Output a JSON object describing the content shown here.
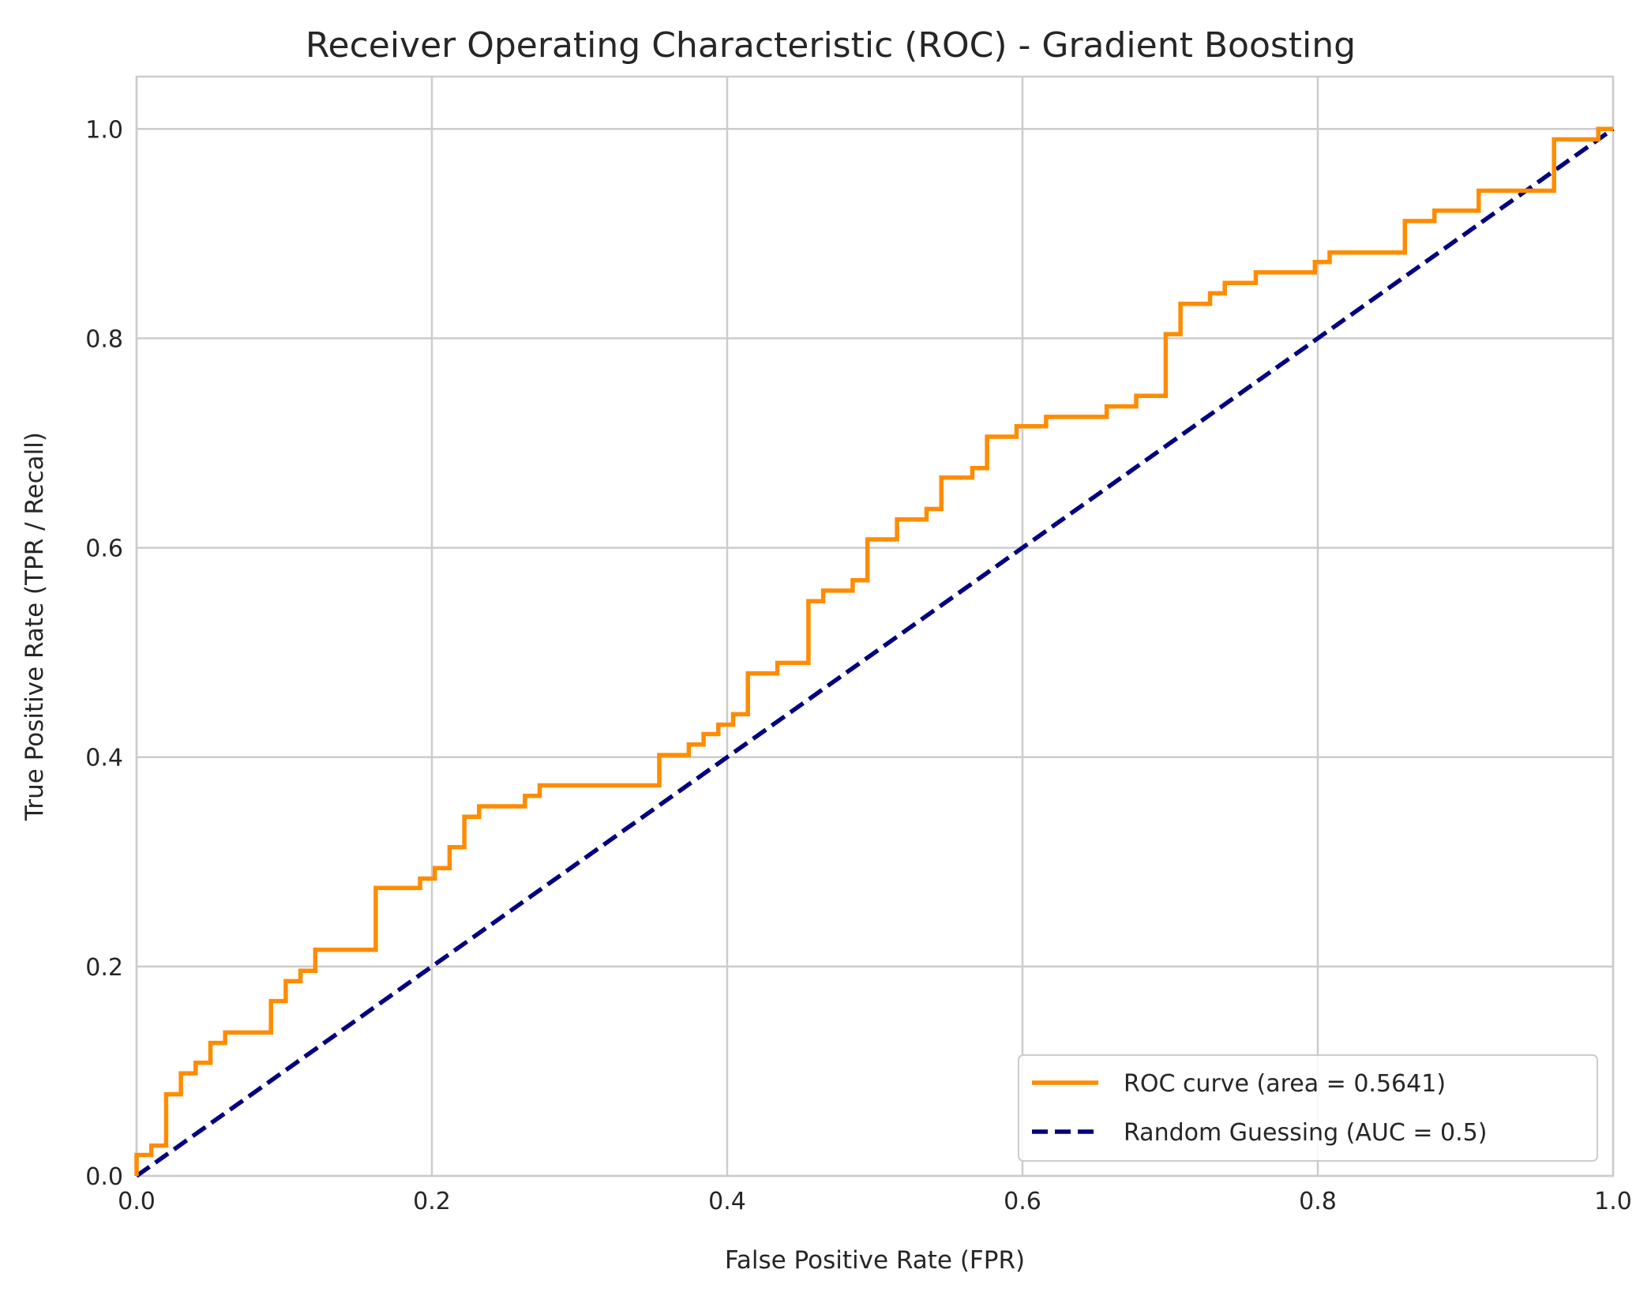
{
  "chart_data": {
    "type": "line",
    "title": "Receiver Operating Characteristic (ROC) - Gradient Boosting",
    "xlabel": "False Positive Rate (FPR)",
    "ylabel": "True Positive Rate (TPR / Recall)",
    "xlim": [
      0.0,
      1.0
    ],
    "ylim": [
      0.0,
      1.05
    ],
    "xticks": [
      "0.0",
      "0.2",
      "0.4",
      "0.6",
      "0.8",
      "1.0"
    ],
    "yticks": [
      "0.0",
      "0.2",
      "0.4",
      "0.6",
      "0.8",
      "1.0"
    ],
    "grid": true,
    "legend_position": "lower-right",
    "series": [
      {
        "name": "ROC curve (area = 0.5641)",
        "color": "#ff8c00",
        "style": "solid",
        "x": [
          0.0,
          0.0,
          0.01,
          0.01,
          0.02,
          0.02,
          0.03,
          0.03,
          0.04,
          0.04,
          0.05,
          0.05,
          0.06,
          0.06,
          0.091,
          0.091,
          0.101,
          0.101,
          0.111,
          0.111,
          0.121,
          0.121,
          0.162,
          0.162,
          0.192,
          0.192,
          0.202,
          0.202,
          0.212,
          0.212,
          0.222,
          0.222,
          0.232,
          0.232,
          0.263,
          0.263,
          0.273,
          0.273,
          0.354,
          0.354,
          0.374,
          0.374,
          0.384,
          0.384,
          0.394,
          0.394,
          0.404,
          0.404,
          0.414,
          0.414,
          0.434,
          0.434,
          0.455,
          0.455,
          0.465,
          0.465,
          0.485,
          0.485,
          0.495,
          0.495,
          0.515,
          0.515,
          0.535,
          0.535,
          0.545,
          0.545,
          0.566,
          0.566,
          0.576,
          0.576,
          0.596,
          0.596,
          0.616,
          0.616,
          0.657,
          0.657,
          0.677,
          0.677,
          0.697,
          0.697,
          0.707,
          0.707,
          0.727,
          0.727,
          0.737,
          0.737,
          0.758,
          0.758,
          0.798,
          0.798,
          0.808,
          0.808,
          0.859,
          0.859,
          0.879,
          0.879,
          0.909,
          0.909,
          0.96,
          0.96,
          0.99,
          0.99,
          1.0
        ],
        "y": [
          0.0,
          0.02,
          0.02,
          0.029,
          0.029,
          0.078,
          0.078,
          0.098,
          0.098,
          0.108,
          0.108,
          0.127,
          0.127,
          0.137,
          0.137,
          0.167,
          0.167,
          0.186,
          0.186,
          0.196,
          0.196,
          0.216,
          0.216,
          0.275,
          0.275,
          0.284,
          0.284,
          0.294,
          0.294,
          0.314,
          0.314,
          0.343,
          0.343,
          0.353,
          0.353,
          0.363,
          0.363,
          0.373,
          0.373,
          0.402,
          0.402,
          0.412,
          0.412,
          0.422,
          0.422,
          0.431,
          0.431,
          0.441,
          0.441,
          0.48,
          0.48,
          0.49,
          0.49,
          0.549,
          0.549,
          0.559,
          0.559,
          0.569,
          0.569,
          0.608,
          0.608,
          0.627,
          0.627,
          0.637,
          0.637,
          0.667,
          0.667,
          0.676,
          0.676,
          0.706,
          0.706,
          0.716,
          0.716,
          0.725,
          0.725,
          0.735,
          0.735,
          0.745,
          0.745,
          0.804,
          0.804,
          0.833,
          0.833,
          0.843,
          0.843,
          0.853,
          0.853,
          0.863,
          0.863,
          0.873,
          0.873,
          0.882,
          0.882,
          0.912,
          0.912,
          0.922,
          0.922,
          0.941,
          0.941,
          0.99,
          0.99,
          1.0,
          1.0
        ]
      },
      {
        "name": "Random Guessing (AUC = 0.5)",
        "color": "#000080",
        "style": "dashed",
        "x": [
          0.0,
          1.0
        ],
        "y": [
          0.0,
          1.0
        ]
      }
    ]
  }
}
